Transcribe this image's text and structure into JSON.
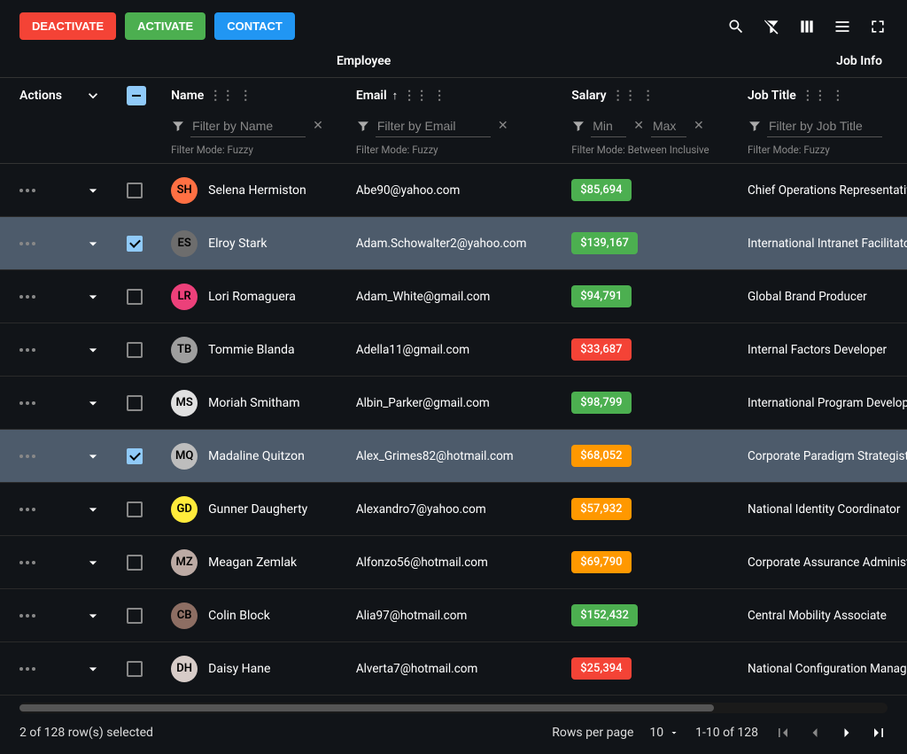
{
  "colors": {
    "deactivate": "#f44336",
    "activate": "#4caf50",
    "contact": "#2196f3",
    "salary_green": "#4caf50",
    "salary_orange": "#ff9800",
    "salary_red": "#f44336",
    "selected_row": "#4d5b6b",
    "checkbox_checked": "#90caf9"
  },
  "buttons": {
    "deactivate": "DEACTIVATE",
    "activate": "ACTIVATE",
    "contact": "CONTACT"
  },
  "group_headers": {
    "employee": "Employee",
    "job_info": "Job Info"
  },
  "columns": {
    "actions": "Actions",
    "name": "Name",
    "email": "Email",
    "salary": "Salary",
    "job_title": "Job Title"
  },
  "sort": {
    "email_asc": "↑"
  },
  "filters": {
    "name_ph": "Filter by Name",
    "email_ph": "Filter by Email",
    "salary_min_ph": "Min",
    "salary_max_ph": "Max",
    "job_ph": "Filter by Job Title",
    "mode_fuzzy": "Filter Mode: Fuzzy",
    "mode_between": "Filter Mode: Between Inclusive"
  },
  "rows": [
    {
      "checked": false,
      "avatar_bg": "#ff7043",
      "avatar_txt": "SH",
      "name": "Selena Hermiston",
      "email": "Abe90@yahoo.com",
      "salary": "$85,694",
      "salary_color": "#4caf50",
      "job": "Chief Operations Representative"
    },
    {
      "checked": true,
      "avatar_bg": "#6d6d6d",
      "avatar_txt": "ES",
      "name": "Elroy Stark",
      "email": "Adam.Schowalter2@yahoo.com",
      "salary": "$139,167",
      "salary_color": "#4caf50",
      "job": "International Intranet Facilitator"
    },
    {
      "checked": false,
      "avatar_bg": "#ec407a",
      "avatar_txt": "LR",
      "name": "Lori Romaguera",
      "email": "Adam_White@gmail.com",
      "salary": "$94,791",
      "salary_color": "#4caf50",
      "job": "Global Brand Producer"
    },
    {
      "checked": false,
      "avatar_bg": "#9e9e9e",
      "avatar_txt": "TB",
      "name": "Tommie Blanda",
      "email": "Adella11@gmail.com",
      "salary": "$33,687",
      "salary_color": "#f44336",
      "job": "Internal Factors Developer"
    },
    {
      "checked": false,
      "avatar_bg": "#e0e0e0",
      "avatar_txt": "MS",
      "name": "Moriah Smitham",
      "email": "Albin_Parker@gmail.com",
      "salary": "$98,799",
      "salary_color": "#4caf50",
      "job": "International Program Developer"
    },
    {
      "checked": true,
      "avatar_bg": "#bdbdbd",
      "avatar_txt": "MQ",
      "name": "Madaline Quitzon",
      "email": "Alex_Grimes82@hotmail.com",
      "salary": "$68,052",
      "salary_color": "#ff9800",
      "job": "Corporate Paradigm Strategist"
    },
    {
      "checked": false,
      "avatar_bg": "#ffeb3b",
      "avatar_txt": "GD",
      "name": "Gunner Daugherty",
      "email": "Alexandro7@yahoo.com",
      "salary": "$57,932",
      "salary_color": "#ff9800",
      "job": "National Identity Coordinator"
    },
    {
      "checked": false,
      "avatar_bg": "#bcaaa4",
      "avatar_txt": "MZ",
      "name": "Meagan Zemlak",
      "email": "Alfonzo56@hotmail.com",
      "salary": "$69,790",
      "salary_color": "#ff9800",
      "job": "Corporate Assurance Administrator"
    },
    {
      "checked": false,
      "avatar_bg": "#8d6e63",
      "avatar_txt": "CB",
      "name": "Colin Block",
      "email": "Alia97@hotmail.com",
      "salary": "$152,432",
      "salary_color": "#4caf50",
      "job": "Central Mobility Associate"
    },
    {
      "checked": false,
      "avatar_bg": "#d7ccc8",
      "avatar_txt": "DH",
      "name": "Daisy Hane",
      "email": "Alverta7@hotmail.com",
      "salary": "$25,394",
      "salary_color": "#f44336",
      "job": "National Configuration Manager"
    }
  ],
  "footer": {
    "selection": "2 of 128 row(s) selected",
    "rows_per_page_label": "Rows per page",
    "rows_per_page_value": "10",
    "range": "1-10 of 128"
  }
}
